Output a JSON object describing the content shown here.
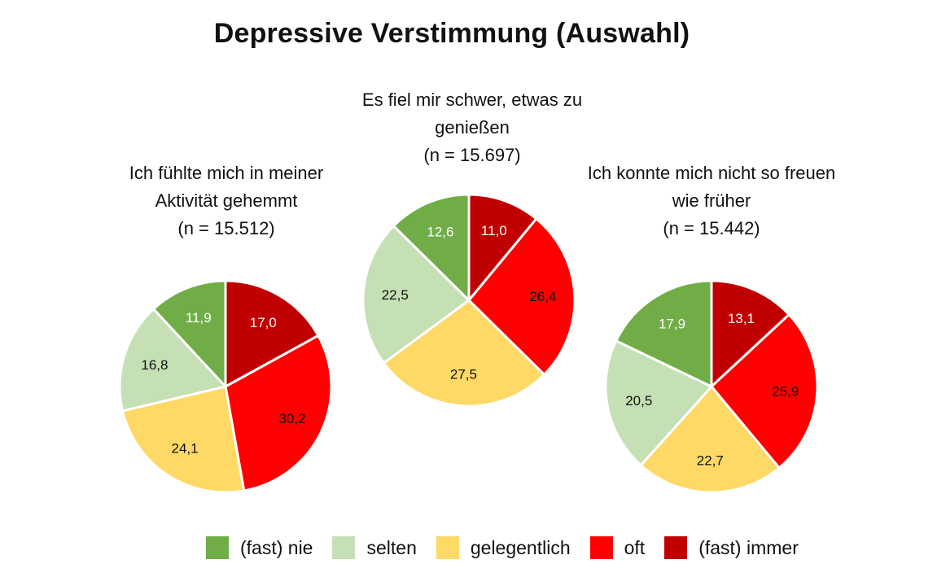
{
  "title": "Depressive Verstimmung (Auswahl)",
  "colors": {
    "nie": "#70ad47",
    "selten": "#c5e0b4",
    "gelegentlich": "#ffd966",
    "oft": "#ff0000",
    "immer": "#c00000"
  },
  "legend": [
    {
      "label": "(fast) nie",
      "color": "#70ad47"
    },
    {
      "label": "selten",
      "color": "#c5e0b4"
    },
    {
      "label": "gelegentlich",
      "color": "#ffd966"
    },
    {
      "label": "oft",
      "color": "#ff0000"
    },
    {
      "label": "(fast) immer",
      "color": "#c00000"
    }
  ],
  "chart_data": [
    {
      "type": "pie",
      "title_lines": [
        "Ich fühlte mich in meiner",
        "Aktivität gehemmt",
        "(n = 15.512)"
      ],
      "categories": [
        "(fast) immer",
        "oft",
        "gelegentlich",
        "selten",
        "(fast) nie"
      ],
      "values": [
        17.0,
        30.2,
        24.1,
        16.8,
        11.9
      ],
      "labels": [
        "17,0",
        "30,2",
        "24,1",
        "16,8",
        "11,9"
      ]
    },
    {
      "type": "pie",
      "title_lines": [
        "Es fiel mir schwer, etwas zu",
        "genießen",
        "(n = 15.697)"
      ],
      "categories": [
        "(fast) immer",
        "oft",
        "gelegentlich",
        "selten",
        "(fast) nie"
      ],
      "values": [
        11.0,
        26.4,
        27.5,
        22.5,
        12.6
      ],
      "labels": [
        "11,0",
        "26,4",
        "27,5",
        "22,5",
        "12,6"
      ]
    },
    {
      "type": "pie",
      "title_lines": [
        "Ich konnte mich nicht so freuen",
        "wie früher",
        "(n = 15.442)"
      ],
      "categories": [
        "(fast) immer",
        "oft",
        "gelegentlich",
        "selten",
        "(fast) nie"
      ],
      "values": [
        13.1,
        25.9,
        22.7,
        20.5,
        17.9
      ],
      "labels": [
        "13,1",
        "25,9",
        "22,7",
        "20,5",
        "17,9"
      ]
    }
  ]
}
